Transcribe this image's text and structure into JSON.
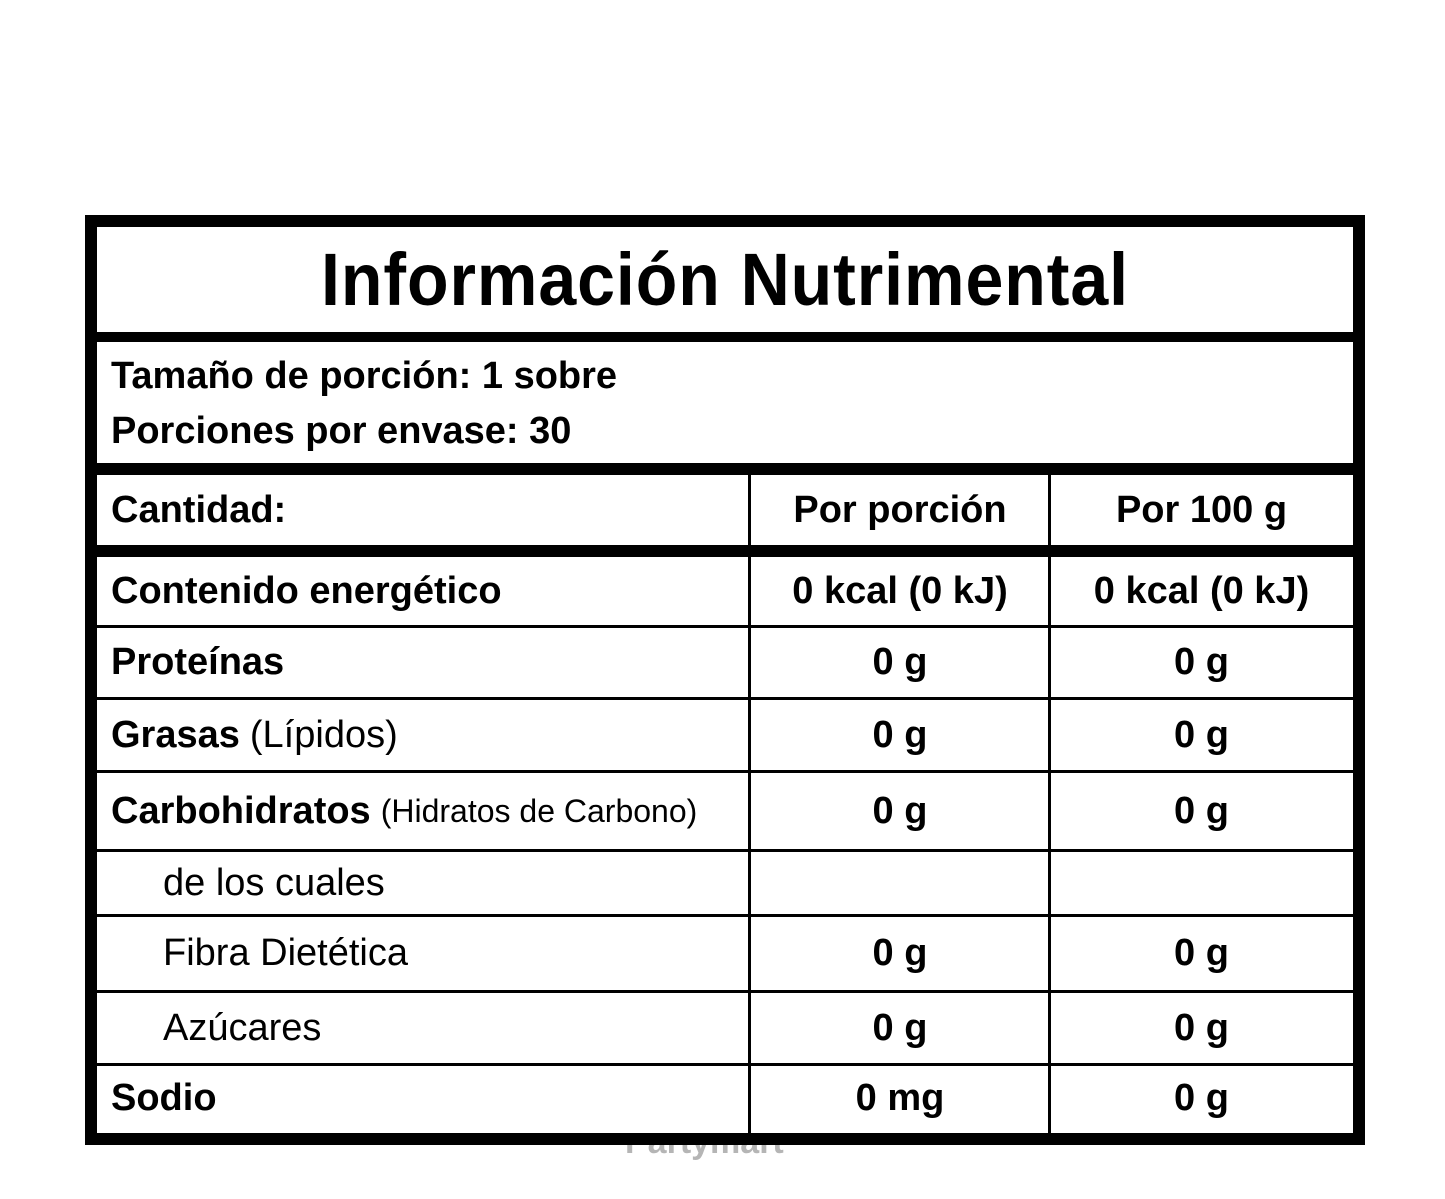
{
  "title": "Información Nutrimental",
  "serving": {
    "size": "Tamaño de porción: 1 sobre",
    "per_container": "Porciones por envase: 30"
  },
  "header": {
    "amount": "Cantidad:",
    "per_serving": "Por porción",
    "per_100g": "Por 100 g"
  },
  "rows": [
    {
      "name": "Contenido energético",
      "note": "",
      "per_serving": "0 kcal (0 kJ)",
      "per_100g": "0 kcal (0 kJ)"
    },
    {
      "name": "Proteínas",
      "note": "",
      "per_serving": "0 g",
      "per_100g": "0 g"
    },
    {
      "name": "Grasas",
      "note": "(Lípidos)",
      "per_serving": "0 g",
      "per_100g": "0 g"
    },
    {
      "name": "Carbohidratos",
      "note": "(Hidratos de Carbono)",
      "per_serving": "0 g",
      "per_100g": "0 g"
    },
    {
      "name": "de los cuales",
      "note": "",
      "per_serving": "",
      "per_100g": ""
    },
    {
      "name": "Fibra Dietética",
      "note": "",
      "per_serving": "0 g",
      "per_100g": "0 g"
    },
    {
      "name": "Azúcares",
      "note": "",
      "per_serving": "0 g",
      "per_100g": "0 g"
    },
    {
      "name": "Sodio",
      "note": "",
      "per_serving": "0 mg",
      "per_100g": "0 g"
    }
  ],
  "watermark": "Partymart"
}
